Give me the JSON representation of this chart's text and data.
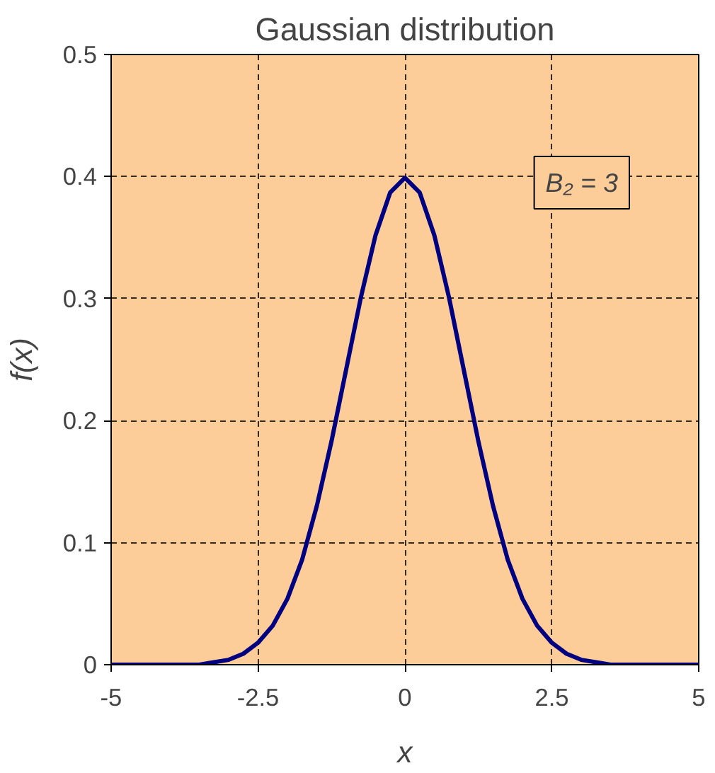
{
  "chart_data": {
    "type": "line",
    "title": "Gaussian distribution",
    "xlabel": "x",
    "ylabel": "f(x)",
    "x": [
      -5,
      -4.5,
      -4,
      -3.75,
      -3.5,
      -3.25,
      -3,
      -2.75,
      -2.5,
      -2.25,
      -2,
      -1.75,
      -1.5,
      -1.25,
      -1,
      -0.75,
      -0.5,
      -0.25,
      0,
      0.25,
      0.5,
      0.75,
      1,
      1.25,
      1.5,
      1.75,
      2,
      2.25,
      2.5,
      2.75,
      3,
      3.25,
      3.5,
      3.75,
      4,
      4.5,
      5
    ],
    "series": [
      {
        "color": "#000080",
        "values": [
          0,
          0,
          0,
          0,
          0,
          0.002,
          0.004,
          0.009,
          0.018,
          0.032,
          0.054,
          0.086,
          0.13,
          0.183,
          0.242,
          0.301,
          0.352,
          0.387,
          0.399,
          0.387,
          0.352,
          0.301,
          0.242,
          0.183,
          0.13,
          0.086,
          0.054,
          0.032,
          0.018,
          0.009,
          0.004,
          0.002,
          0,
          0,
          0,
          0,
          0
        ]
      }
    ],
    "xlim": [
      -5,
      5
    ],
    "ylim": [
      0,
      0.5
    ],
    "xticks": [
      -5,
      -2.5,
      0,
      2.5,
      5
    ],
    "yticks": [
      0,
      0.1,
      0.2,
      0.3,
      0.4,
      0.5
    ],
    "grid": true,
    "marker": "none",
    "line_style": "solid",
    "annotations": [
      "B₂ = 3"
    ]
  }
}
